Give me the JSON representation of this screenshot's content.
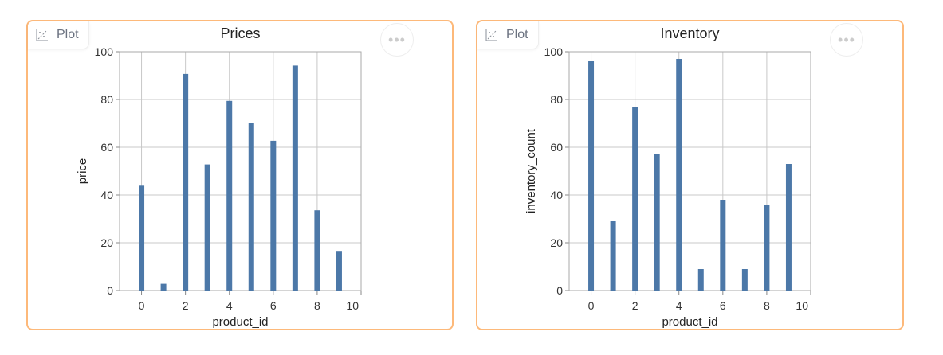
{
  "cards": [
    {
      "badge": "Plot",
      "badge_icon": "chart-icon",
      "menu_icon": "more-icon"
    },
    {
      "badge": "Plot",
      "badge_icon": "chart-icon",
      "menu_icon": "more-icon"
    }
  ],
  "colors": {
    "bar": "#4c78a8",
    "border": "#fdb97a",
    "grid": "#c8c8c8"
  },
  "chart_data": [
    {
      "type": "bar",
      "title": "Prices",
      "xlabel": "product_id",
      "ylabel": "price",
      "xlim": [
        -1,
        10
      ],
      "ylim": [
        0,
        100
      ],
      "grid": true,
      "xticks": [
        0,
        2,
        4,
        6,
        8,
        10
      ],
      "yticks": [
        0,
        20,
        40,
        60,
        80,
        100
      ],
      "x": [
        0,
        1,
        2,
        3,
        4,
        5,
        6,
        7,
        8,
        9
      ],
      "values": [
        43.9,
        2.8,
        90.7,
        52.8,
        79.4,
        70.2,
        62.7,
        94.2,
        33.6,
        16.6
      ]
    },
    {
      "type": "bar",
      "title": "Inventory",
      "xlabel": "product_id",
      "ylabel": "inventory_count",
      "xlim": [
        -1,
        10
      ],
      "ylim": [
        0,
        100
      ],
      "grid": true,
      "xticks": [
        0,
        2,
        4,
        6,
        8,
        10
      ],
      "yticks": [
        0,
        20,
        40,
        60,
        80,
        100
      ],
      "x": [
        0,
        1,
        2,
        3,
        4,
        5,
        6,
        7,
        8,
        9
      ],
      "values": [
        96,
        29,
        77,
        57,
        97,
        9,
        38,
        9,
        36,
        53
      ]
    }
  ]
}
